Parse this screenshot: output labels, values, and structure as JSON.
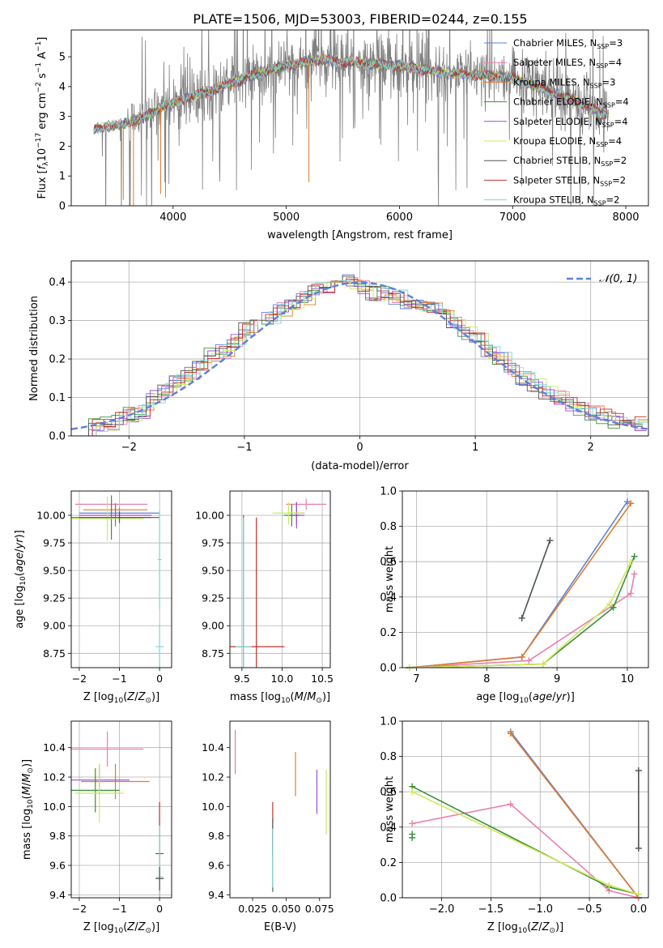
{
  "title": "PLATE=1506, MJD=53003, FIBERID=0244, z=0.155",
  "colors": {
    "Chabrier MILES": "#5e81d8",
    "Salpeter MILES": "#e97fb0",
    "Kroupa MILES": "#e07b2a",
    "Chabrier ELODIE": "#3a8f3a",
    "Salpeter ELODIE": "#9b4fd1",
    "Kroupa ELODIE": "#cfe85a",
    "Chabrier STELIB": "#555555",
    "Salpeter STELIB": "#c0302a",
    "Kroupa STELIB": "#7fd6d6",
    "data": "#808080",
    "gaussian": "#5e81d8"
  },
  "chart_data": [
    {
      "id": "spectrum",
      "type": "line",
      "title": "PLATE=1506, MJD=53003, FIBERID=0244, z=0.155",
      "xlabel": "wavelength [Angstrom, rest frame]",
      "ylabel": "Flux [f_λ 10^-17 erg cm^-2 s^-1 A^-1]",
      "xlim": [
        3100,
        8200
      ],
      "ylim": [
        0,
        5.9
      ],
      "xticks": [
        "4000",
        "5000",
        "6000",
        "7000",
        "8000"
      ],
      "yticks": [
        "0",
        "1",
        "2",
        "3",
        "4",
        "5"
      ],
      "legend_position": "right",
      "legend": [
        "Chabrier MILES, N_SSP=3",
        "Salpeter MILES, N_SSP=4",
        "Kroupa MILES, N_SSP=3",
        "Chabrier ELODIE, N_SSP=4",
        "Salpeter ELODIE, N_SSP=4",
        "Kroupa ELODIE, N_SSP=4",
        "Chabrier STELIB, N_SSP=2",
        "Salpeter STELIB, N_SSP=2",
        "Kroupa STELIB, N_SSP=2"
      ],
      "continuum_points": [
        [
          3300,
          2.6
        ],
        [
          3500,
          2.7
        ],
        [
          3700,
          2.9
        ],
        [
          3900,
          3.3
        ],
        [
          4100,
          3.6
        ],
        [
          4300,
          3.8
        ],
        [
          4500,
          4.1
        ],
        [
          4800,
          4.5
        ],
        [
          5000,
          4.7
        ],
        [
          5300,
          4.9
        ],
        [
          5600,
          4.8
        ],
        [
          6000,
          4.7
        ],
        [
          6300,
          4.5
        ],
        [
          6600,
          4.4
        ],
        [
          7000,
          4.3
        ],
        [
          7500,
          3.6
        ],
        [
          7800,
          3.1
        ]
      ]
    },
    {
      "id": "residuals",
      "type": "line",
      "xlabel": "(data-model)/error",
      "ylabel": "Normed distribution",
      "xlim": [
        -2.5,
        2.5
      ],
      "ylim": [
        0,
        0.455
      ],
      "xticks": [
        "−2",
        "−1",
        "0",
        "1",
        "2"
      ],
      "yticks": [
        "0.0",
        "0.1",
        "0.2",
        "0.3",
        "0.4"
      ],
      "grid": true,
      "legend": [
        "𝒩(0, 1)"
      ],
      "legend_position": "top-right",
      "hist_centers": [
        -2.4,
        -2.3,
        -2.2,
        -2.1,
        -2.0,
        -1.9,
        -1.8,
        -1.7,
        -1.6,
        -1.5,
        -1.4,
        -1.3,
        -1.2,
        -1.1,
        -1.0,
        -0.9,
        -0.8,
        -0.7,
        -0.6,
        -0.5,
        -0.4,
        -0.3,
        -0.2,
        -0.1,
        0.0,
        0.1,
        0.2,
        0.3,
        0.4,
        0.5,
        0.6,
        0.7,
        0.8,
        0.9,
        1.0,
        1.1,
        1.2,
        1.3,
        1.4,
        1.5,
        1.6,
        1.7,
        1.8,
        1.9,
        2.0,
        2.1,
        2.2,
        2.3,
        2.4
      ],
      "hist_values": [
        0.02,
        0.025,
        0.035,
        0.045,
        0.055,
        0.065,
        0.1,
        0.12,
        0.14,
        0.16,
        0.18,
        0.21,
        0.22,
        0.25,
        0.28,
        0.3,
        0.31,
        0.33,
        0.34,
        0.36,
        0.38,
        0.39,
        0.4,
        0.4,
        0.39,
        0.37,
        0.37,
        0.36,
        0.35,
        0.34,
        0.33,
        0.31,
        0.29,
        0.27,
        0.25,
        0.22,
        0.2,
        0.17,
        0.15,
        0.13,
        0.11,
        0.1,
        0.08,
        0.07,
        0.06,
        0.05,
        0.04,
        0.035,
        0.03
      ]
    },
    {
      "id": "age-vs-Z",
      "type": "scatter",
      "xlabel": "Z [log10(Z/Z⊙)]",
      "ylabel": "age  [log10(age/yr)]",
      "xlim": [
        -2.2,
        0.3
      ],
      "ylim": [
        8.62,
        10.22
      ],
      "xticks": [
        "−2",
        "−1",
        "0"
      ],
      "yticks": [
        "8.75",
        "9.00",
        "9.25",
        "9.50",
        "9.75",
        "10.00"
      ],
      "grid": true,
      "points": [
        {
          "series": "Chabrier MILES",
          "x": -1.0,
          "y": 10.02,
          "xerr": 1.0,
          "yerr": 0.05
        },
        {
          "series": "Salpeter MILES",
          "x": -1.2,
          "y": 10.1,
          "xerr": 0.9,
          "yerr": 0.05
        },
        {
          "series": "Kroupa MILES",
          "x": -1.1,
          "y": 10.05,
          "xerr": 0.8,
          "yerr": 0.06
        },
        {
          "series": "Chabrier ELODIE",
          "x": -1.2,
          "y": 9.98,
          "xerr": 1.0,
          "yerr": 0.2
        },
        {
          "series": "Salpeter ELODIE",
          "x": -1.1,
          "y": 10.0,
          "xerr": 0.9,
          "yerr": 0.1
        },
        {
          "series": "Kroupa ELODIE",
          "x": -1.3,
          "y": 9.97,
          "xerr": 0.9,
          "yerr": 0.2
        },
        {
          "series": "Chabrier STELIB",
          "x": -1.0,
          "y": 9.98,
          "xerr": 1.0,
          "yerr": 0.05
        },
        {
          "series": "Kroupa STELIB",
          "x": 0.0,
          "y": 8.81,
          "xerr": 0.1,
          "yerr": 0.2
        },
        {
          "series": "Kroupa STELIB",
          "x": 0.0,
          "y": 9.6,
          "xerr": 0.05,
          "yerr": 0.45
        }
      ]
    },
    {
      "id": "age-vs-mass",
      "type": "scatter",
      "xlabel": "mass [log10(M/M⊙)]",
      "ylabel": "",
      "xlim": [
        9.35,
        10.6
      ],
      "ylim": [
        8.62,
        10.22
      ],
      "xticks": [
        "9.5",
        "10.0",
        "10.5"
      ],
      "yticks": [
        "8.75",
        "9.00",
        "9.25",
        "9.50",
        "9.75",
        "10.00"
      ],
      "grid": true,
      "points": [
        {
          "series": "Salpeter MILES",
          "x": 10.3,
          "y": 10.1,
          "xerr": 0.25,
          "yerr": 0.05
        },
        {
          "series": "Kroupa MILES",
          "x": 10.18,
          "y": 10.02,
          "xerr": 0.1,
          "yerr": 0.1
        },
        {
          "series": "Salpeter ELODIE",
          "x": 10.18,
          "y": 10.0,
          "xerr": 0.1,
          "yerr": 0.12
        },
        {
          "series": "Chabrier ELODIE",
          "x": 10.12,
          "y": 10.0,
          "xerr": 0.1,
          "yerr": 0.1
        },
        {
          "series": "Kroupa ELODIE",
          "x": 10.08,
          "y": 10.02,
          "xerr": 0.2,
          "yerr": 0.1
        },
        {
          "series": "Salpeter STELIB",
          "x": 9.68,
          "y": 8.81,
          "xerr": 0.35,
          "yerr": 0.0
        },
        {
          "series": "Salpeter STELIB",
          "x": 9.68,
          "y": 9.3,
          "xerr": 0.0,
          "yerr": 0.68
        },
        {
          "series": "Chabrier STELIB",
          "x": 9.52,
          "y": 9.3,
          "xerr": 0.0,
          "yerr": 0.7
        },
        {
          "series": "Kroupa STELIB",
          "x": 9.52,
          "y": 8.81,
          "xerr": 0.1,
          "yerr": 0.0
        },
        {
          "series": "Kroupa STELIB",
          "x": 9.52,
          "y": 9.3,
          "xerr": 0.0,
          "yerr": 0.68
        }
      ]
    },
    {
      "id": "massweight-vs-age",
      "type": "line",
      "xlabel": "age  [log10(age/yr)]",
      "ylabel": "mass weight",
      "xlim": [
        6.8,
        10.3
      ],
      "ylim": [
        0,
        1.0
      ],
      "xticks": [
        "7",
        "8",
        "9",
        "10"
      ],
      "yticks": [
        "0.0",
        "0.2",
        "0.4",
        "0.6",
        "0.8",
        "1.0"
      ],
      "grid": true,
      "series": [
        {
          "name": "Chabrier MILES",
          "x": [
            6.9,
            8.5,
            10.0
          ],
          "y": [
            0.0,
            0.06,
            0.94
          ]
        },
        {
          "name": "Kroupa MILES",
          "x": [
            6.9,
            8.5,
            10.05
          ],
          "y": [
            0.0,
            0.06,
            0.93
          ]
        },
        {
          "name": "Salpeter MILES",
          "x": [
            6.9,
            8.6,
            10.05,
            10.1
          ],
          "y": [
            0.0,
            0.04,
            0.42,
            0.53
          ]
        },
        {
          "name": "Chabrier ELODIE",
          "x": [
            6.9,
            8.8,
            9.8,
            10.1
          ],
          "y": [
            0.0,
            0.02,
            0.34,
            0.63
          ]
        },
        {
          "name": "Kroupa ELODIE",
          "x": [
            6.9,
            8.8,
            9.75,
            10.05
          ],
          "y": [
            0.0,
            0.02,
            0.36,
            0.6
          ]
        },
        {
          "name": "Kroupa STELIB",
          "x": [
            8.5,
            8.9
          ],
          "y": [
            0.28,
            0.72
          ]
        },
        {
          "name": "Chabrier STELIB",
          "x": [
            8.5,
            8.9
          ],
          "y": [
            0.28,
            0.72
          ]
        }
      ]
    },
    {
      "id": "mass-vs-Z",
      "type": "scatter",
      "xlabel": "Z [log10(Z/Z⊙)]",
      "ylabel": "mass [log10(M/M⊙)]",
      "xlim": [
        -2.2,
        0.3
      ],
      "ylim": [
        9.38,
        10.58
      ],
      "xticks": [
        "−2",
        "−1",
        "0"
      ],
      "yticks": [
        "9.4",
        "9.6",
        "9.8",
        "10.0",
        "10.2",
        "10.4"
      ],
      "grid": true,
      "points": [
        {
          "series": "Salpeter MILES",
          "x": -1.3,
          "y": 10.39,
          "xerr": 0.9,
          "yerr": 0.12
        },
        {
          "series": "Kroupa MILES",
          "x": -1.1,
          "y": 10.17,
          "xerr": 0.85,
          "yerr": 0.12
        },
        {
          "series": "Salpeter ELODIE",
          "x": -1.5,
          "y": 10.18,
          "xerr": 0.75,
          "yerr": 0.1
        },
        {
          "series": "Chabrier ELODIE",
          "x": -1.6,
          "y": 10.11,
          "xerr": 0.6,
          "yerr": 0.15
        },
        {
          "series": "Kroupa ELODIE",
          "x": -1.5,
          "y": 10.09,
          "xerr": 0.6,
          "yerr": 0.2
        },
        {
          "series": "Salpeter STELIB",
          "x": 0.0,
          "y": 9.68,
          "xerr": 0.1,
          "yerr": 0.35
        },
        {
          "series": "Kroupa STELIB",
          "x": 0.0,
          "y": 9.52,
          "xerr": 0.1,
          "yerr": 0.35
        },
        {
          "series": "Chabrier STELIB",
          "x": 0.0,
          "y": 9.51,
          "xerr": 0.1,
          "yerr": 0.08
        }
      ]
    },
    {
      "id": "mass-vs-EBV",
      "type": "scatter",
      "xlabel": "E(B-V)",
      "ylabel": "",
      "xlim": [
        0.008,
        0.083
      ],
      "ylim": [
        9.38,
        10.58
      ],
      "xticks": [
        "0.025",
        "0.050",
        "0.075"
      ],
      "yticks": [
        "9.4",
        "9.6",
        "9.8",
        "10.0",
        "10.2",
        "10.4"
      ],
      "grid": false,
      "points": [
        {
          "series": "Salpeter MILES",
          "x": 0.012,
          "y": 10.37,
          "xerr": 0,
          "yerr": 0.15
        },
        {
          "series": "Kroupa MILES",
          "x": 0.057,
          "y": 10.22,
          "xerr": 0,
          "yerr": 0.15
        },
        {
          "series": "Salpeter ELODIE",
          "x": 0.073,
          "y": 10.1,
          "xerr": 0,
          "yerr": 0.15
        },
        {
          "series": "Kroupa ELODIE",
          "x": 0.08,
          "y": 10.03,
          "xerr": 0,
          "yerr": 0.22
        },
        {
          "series": "Salpeter STELIB",
          "x": 0.04,
          "y": 9.85,
          "xerr": 0,
          "yerr": 0.18
        },
        {
          "series": "Chabrier STELIB",
          "x": 0.04,
          "y": 9.67,
          "xerr": 0,
          "yerr": 0.25
        },
        {
          "series": "Kroupa STELIB",
          "x": 0.04,
          "y": 9.65,
          "xerr": 0,
          "yerr": 0.2
        }
      ]
    },
    {
      "id": "massweight-vs-Z",
      "type": "line",
      "xlabel": "Z [log10(Z/Z⊙)]",
      "ylabel": "mass weight",
      "xlim": [
        -2.4,
        0.1
      ],
      "ylim": [
        0,
        1.0
      ],
      "xticks": [
        "−2.0",
        "−1.5",
        "−1.0",
        "−0.5",
        "0.0"
      ],
      "yticks": [
        "0.0",
        "0.2",
        "0.4",
        "0.6",
        "0.8",
        "1.0"
      ],
      "grid": true,
      "series": [
        {
          "name": "Chabrier MILES",
          "x": [
            -1.3,
            0.0
          ],
          "y": [
            0.94,
            0.0
          ]
        },
        {
          "name": "Kroupa MILES",
          "x": [
            -1.3,
            0.0
          ],
          "y": [
            0.93,
            0.0
          ]
        },
        {
          "name": "Salpeter MILES",
          "x": [
            -2.3,
            -1.3,
            -0.3,
            0.0
          ],
          "y": [
            0.42,
            0.53,
            0.04,
            0.0
          ]
        },
        {
          "name": "Chabrier ELODIE",
          "x": [
            -2.3,
            -0.3,
            0.0
          ],
          "y": [
            0.63,
            0.06,
            0.02
          ]
        },
        {
          "name": "Kroupa ELODIE",
          "x": [
            -2.3,
            -0.3,
            0.0
          ],
          "y": [
            0.6,
            0.07,
            0.02
          ]
        },
        {
          "name": "Chabrier ELODIE",
          "x": [
            -2.3,
            -2.3
          ],
          "y": [
            0.34,
            0.36
          ]
        },
        {
          "name": "Kroupa STELIB",
          "x": [
            0.0,
            0.0
          ],
          "y": [
            0.28,
            0.72
          ]
        },
        {
          "name": "Chabrier STELIB",
          "x": [
            0.0,
            0.0
          ],
          "y": [
            0.28,
            0.72
          ]
        }
      ]
    }
  ]
}
